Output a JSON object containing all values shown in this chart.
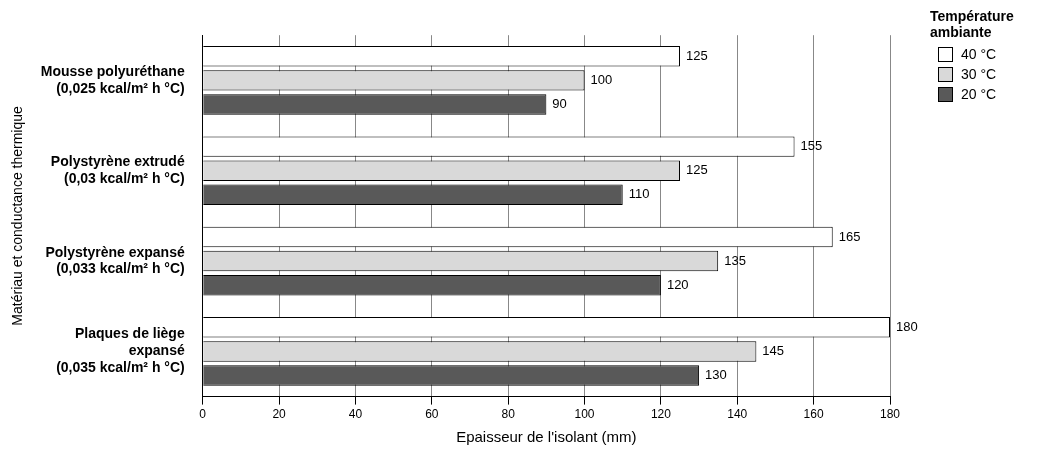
{
  "chart_data": {
    "type": "bar",
    "orientation": "horizontal",
    "xlabel": "Epaisseur de l'isolant (mm)",
    "ylabel": "Matériau et conductance thermique",
    "legend_title": "Température ambiante",
    "categories": [
      "Mousse polyuréthane\n(0,025 kcal/m² h °C)",
      "Polystyrène extrudé\n(0,03 kcal/m² h °C)",
      "Polystyrène expansé\n(0,033 kcal/m² h °C)",
      "Plaques de liège\nexpansé\n(0,035 kcal/m² h °C)"
    ],
    "series": [
      {
        "name": "40 °C",
        "color": "#ffffff",
        "values": [
          125,
          155,
          165,
          180
        ]
      },
      {
        "name": "30 °C",
        "color": "#d9d9d9",
        "values": [
          100,
          125,
          135,
          145
        ]
      },
      {
        "name": "20 °C",
        "color": "#595959",
        "values": [
          90,
          110,
          120,
          130
        ]
      }
    ],
    "xlim": [
      0,
      180
    ],
    "xticks": [
      0,
      20,
      40,
      60,
      80,
      100,
      120,
      140,
      160,
      180
    ],
    "grid": "x",
    "legend": "top right",
    "data_labels": true
  }
}
